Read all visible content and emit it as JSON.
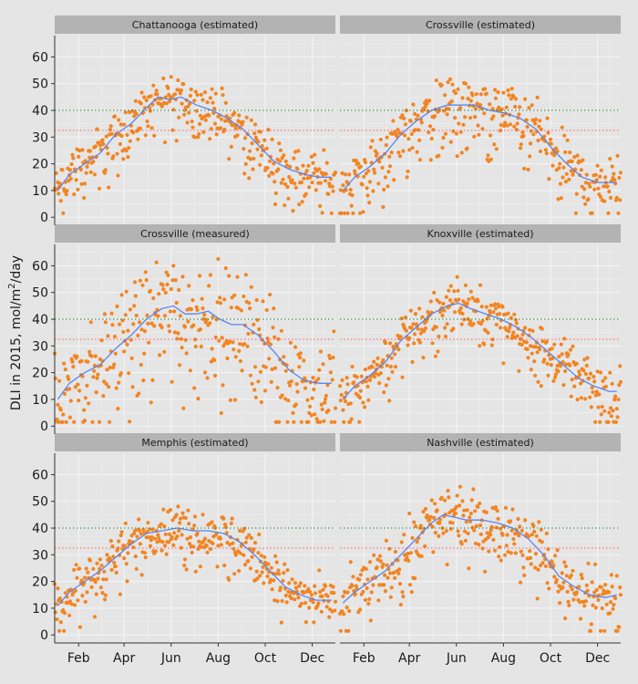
{
  "chart_data": {
    "type": "scatter",
    "ylabel_prefix": "DLI in 2015, mol/m",
    "ylabel_sup": "2",
    "ylabel_suffix": "/day",
    "xlabel": "",
    "x_ticks": [
      "Feb",
      "Apr",
      "Jun",
      "Aug",
      "Oct",
      "Dec"
    ],
    "x_tick_days": [
      32,
      91,
      152,
      213,
      274,
      335
    ],
    "xlim": [
      1,
      365
    ],
    "y_ticks": [
      0,
      10,
      20,
      30,
      40,
      50,
      60
    ],
    "ylim": [
      -3,
      68
    ],
    "point_color": "#f28522",
    "smooth_color": "#5b84f0",
    "ref_lines": [
      {
        "value": 40,
        "color": "#2e7d32",
        "style": "dotted"
      },
      {
        "value": 32.5,
        "color": "#ff5a5a",
        "style": "dotted"
      }
    ],
    "panels": [
      {
        "title": "Chattanooga (estimated)",
        "smooth": [
          [
            5,
            10
          ],
          [
            20,
            16
          ],
          [
            40,
            20
          ],
          [
            60,
            24
          ],
          [
            80,
            31
          ],
          [
            100,
            35
          ],
          [
            120,
            41
          ],
          [
            135,
            45
          ],
          [
            150,
            44
          ],
          [
            165,
            45
          ],
          [
            185,
            42
          ],
          [
            205,
            40
          ],
          [
            225,
            37
          ],
          [
            245,
            33
          ],
          [
            265,
            27
          ],
          [
            285,
            21
          ],
          [
            305,
            18
          ],
          [
            325,
            16
          ],
          [
            345,
            15
          ],
          [
            360,
            15
          ]
        ],
        "spread": 6
      },
      {
        "title": "Crossville (estimated)",
        "smooth": [
          [
            5,
            10
          ],
          [
            20,
            15
          ],
          [
            40,
            19
          ],
          [
            60,
            24
          ],
          [
            80,
            31
          ],
          [
            100,
            36
          ],
          [
            120,
            40
          ],
          [
            140,
            42
          ],
          [
            160,
            42
          ],
          [
            175,
            42
          ],
          [
            195,
            40
          ],
          [
            215,
            39
          ],
          [
            235,
            37
          ],
          [
            255,
            33
          ],
          [
            275,
            26
          ],
          [
            295,
            20
          ],
          [
            315,
            15
          ],
          [
            335,
            13
          ],
          [
            355,
            13
          ],
          [
            360,
            13
          ]
        ],
        "spread": 7
      },
      {
        "title": "Crossville (measured)",
        "smooth": [
          [
            5,
            10
          ],
          [
            20,
            16
          ],
          [
            40,
            20
          ],
          [
            60,
            23
          ],
          [
            80,
            29
          ],
          [
            100,
            34
          ],
          [
            120,
            40
          ],
          [
            140,
            44
          ],
          [
            155,
            45
          ],
          [
            170,
            42
          ],
          [
            185,
            42
          ],
          [
            200,
            43
          ],
          [
            215,
            40
          ],
          [
            230,
            38
          ],
          [
            245,
            38
          ],
          [
            265,
            34
          ],
          [
            285,
            28
          ],
          [
            305,
            21
          ],
          [
            325,
            17
          ],
          [
            345,
            16
          ],
          [
            360,
            16
          ]
        ],
        "spread": 13
      },
      {
        "title": "Knoxville (estimated)",
        "smooth": [
          [
            5,
            10
          ],
          [
            20,
            15
          ],
          [
            40,
            19
          ],
          [
            60,
            24
          ],
          [
            80,
            32
          ],
          [
            100,
            37
          ],
          [
            120,
            42
          ],
          [
            140,
            45
          ],
          [
            155,
            46
          ],
          [
            170,
            44
          ],
          [
            190,
            42
          ],
          [
            210,
            40
          ],
          [
            230,
            37
          ],
          [
            250,
            33
          ],
          [
            270,
            28
          ],
          [
            290,
            23
          ],
          [
            310,
            18
          ],
          [
            330,
            15
          ],
          [
            350,
            13
          ],
          [
            360,
            13
          ]
        ],
        "spread": 6
      },
      {
        "title": "Memphis (estimated)",
        "smooth": [
          [
            5,
            11
          ],
          [
            20,
            16
          ],
          [
            40,
            20
          ],
          [
            60,
            24
          ],
          [
            80,
            29
          ],
          [
            100,
            34
          ],
          [
            120,
            38
          ],
          [
            140,
            39
          ],
          [
            160,
            40
          ],
          [
            180,
            39
          ],
          [
            200,
            39
          ],
          [
            220,
            38
          ],
          [
            240,
            35
          ],
          [
            260,
            30
          ],
          [
            280,
            24
          ],
          [
            300,
            18
          ],
          [
            320,
            15
          ],
          [
            340,
            13
          ],
          [
            360,
            13
          ]
        ],
        "spread": 6
      },
      {
        "title": "Nashville (estimated)",
        "smooth": [
          [
            5,
            12
          ],
          [
            20,
            16
          ],
          [
            40,
            20
          ],
          [
            60,
            24
          ],
          [
            80,
            30
          ],
          [
            100,
            36
          ],
          [
            120,
            42
          ],
          [
            135,
            45
          ],
          [
            150,
            44
          ],
          [
            165,
            43
          ],
          [
            185,
            43
          ],
          [
            205,
            42
          ],
          [
            225,
            40
          ],
          [
            245,
            36
          ],
          [
            265,
            30
          ],
          [
            285,
            22
          ],
          [
            305,
            18
          ],
          [
            325,
            15
          ],
          [
            345,
            14
          ],
          [
            360,
            15
          ]
        ],
        "spread": 7
      }
    ]
  }
}
